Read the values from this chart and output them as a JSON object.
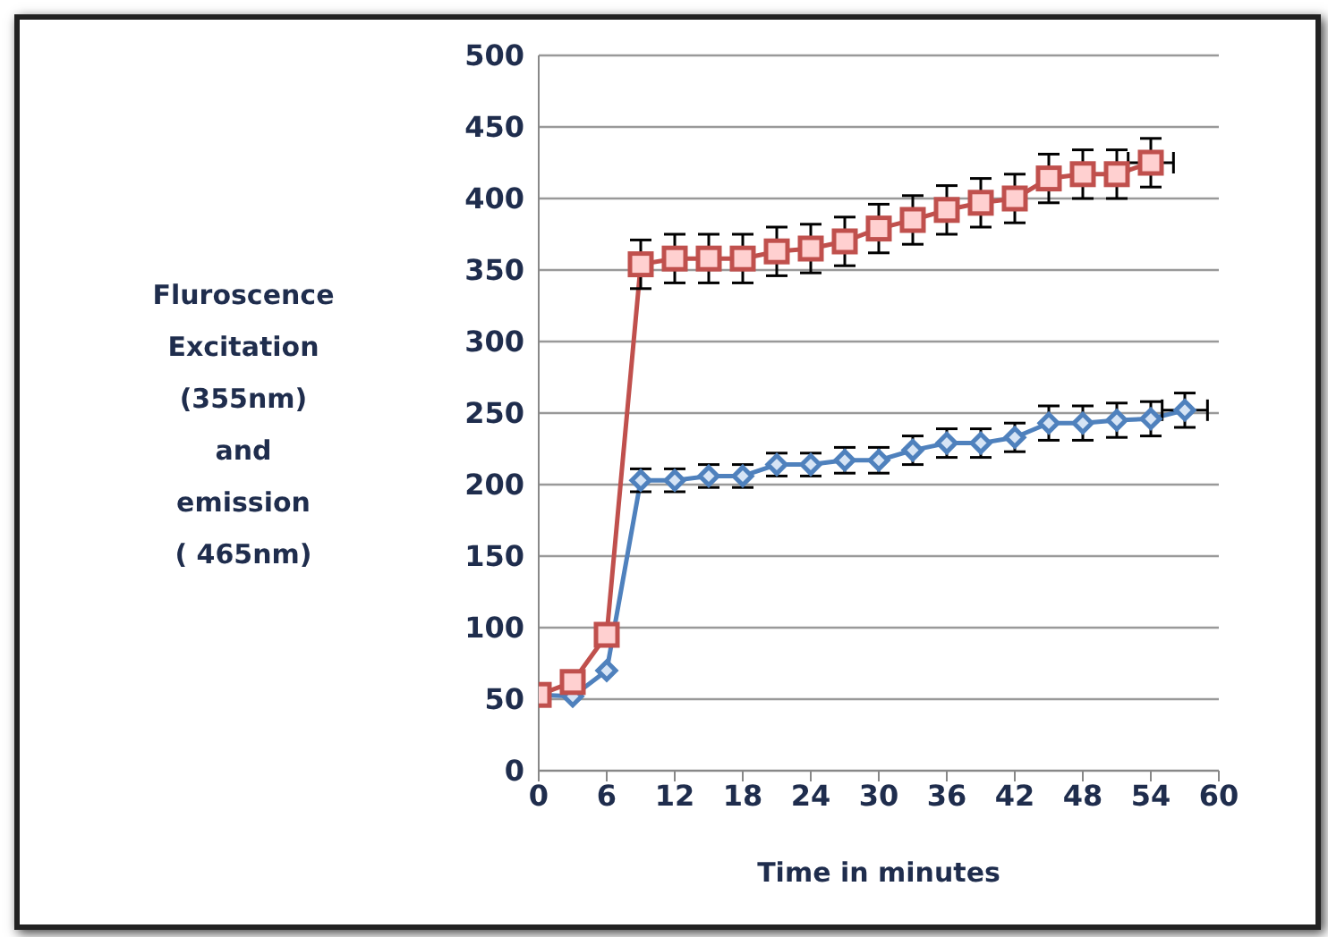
{
  "chart_data": {
    "type": "line",
    "xlabel": "Time in minutes",
    "ylabel": "Fluroscence\nExcitation\n(355nm)\nand\nemission\n( 465nm)",
    "xlim": [
      0,
      60
    ],
    "xticks": [
      0,
      6,
      12,
      18,
      24,
      30,
      36,
      42,
      48,
      54,
      60
    ],
    "ylim": [
      0,
      500
    ],
    "yticks": [
      0,
      50,
      100,
      150,
      200,
      250,
      300,
      350,
      400,
      450,
      500
    ],
    "grid": "y",
    "series": [
      {
        "color": "#4f81bd",
        "marker": "diamond",
        "x": [
          0,
          3,
          6,
          9,
          12,
          15,
          18,
          21,
          24,
          27,
          30,
          33,
          36,
          39,
          42,
          45,
          48,
          51,
          54,
          57
        ],
        "values": [
          53,
          52,
          70,
          203,
          203,
          206,
          206,
          214,
          214,
          217,
          217,
          224,
          229,
          229,
          233,
          243,
          243,
          245,
          246,
          252
        ],
        "errors": [
          null,
          null,
          null,
          8,
          8,
          8,
          8,
          8,
          8,
          9,
          9,
          10,
          10,
          10,
          10,
          12,
          12,
          12,
          12,
          12
        ],
        "xerrors": [
          null,
          null,
          null,
          null,
          null,
          null,
          null,
          null,
          null,
          null,
          null,
          null,
          null,
          null,
          null,
          null,
          null,
          null,
          null,
          2
        ]
      },
      {
        "color": "#c0504d",
        "marker": "square",
        "x": [
          0,
          3,
          6,
          9,
          12,
          15,
          18,
          21,
          24,
          27,
          30,
          33,
          36,
          39,
          42,
          45,
          48,
          51,
          54
        ],
        "values": [
          53,
          62,
          95,
          354,
          358,
          358,
          358,
          363,
          365,
          370,
          379,
          385,
          392,
          397,
          400,
          414,
          417,
          417,
          425
        ],
        "errors": [
          null,
          null,
          null,
          17,
          17,
          17,
          17,
          17,
          17,
          17,
          17,
          17,
          17,
          17,
          17,
          17,
          17,
          17,
          17
        ],
        "xerrors": [
          null,
          null,
          null,
          null,
          null,
          null,
          null,
          null,
          null,
          null,
          null,
          null,
          null,
          null,
          null,
          null,
          null,
          null,
          2
        ]
      }
    ]
  }
}
